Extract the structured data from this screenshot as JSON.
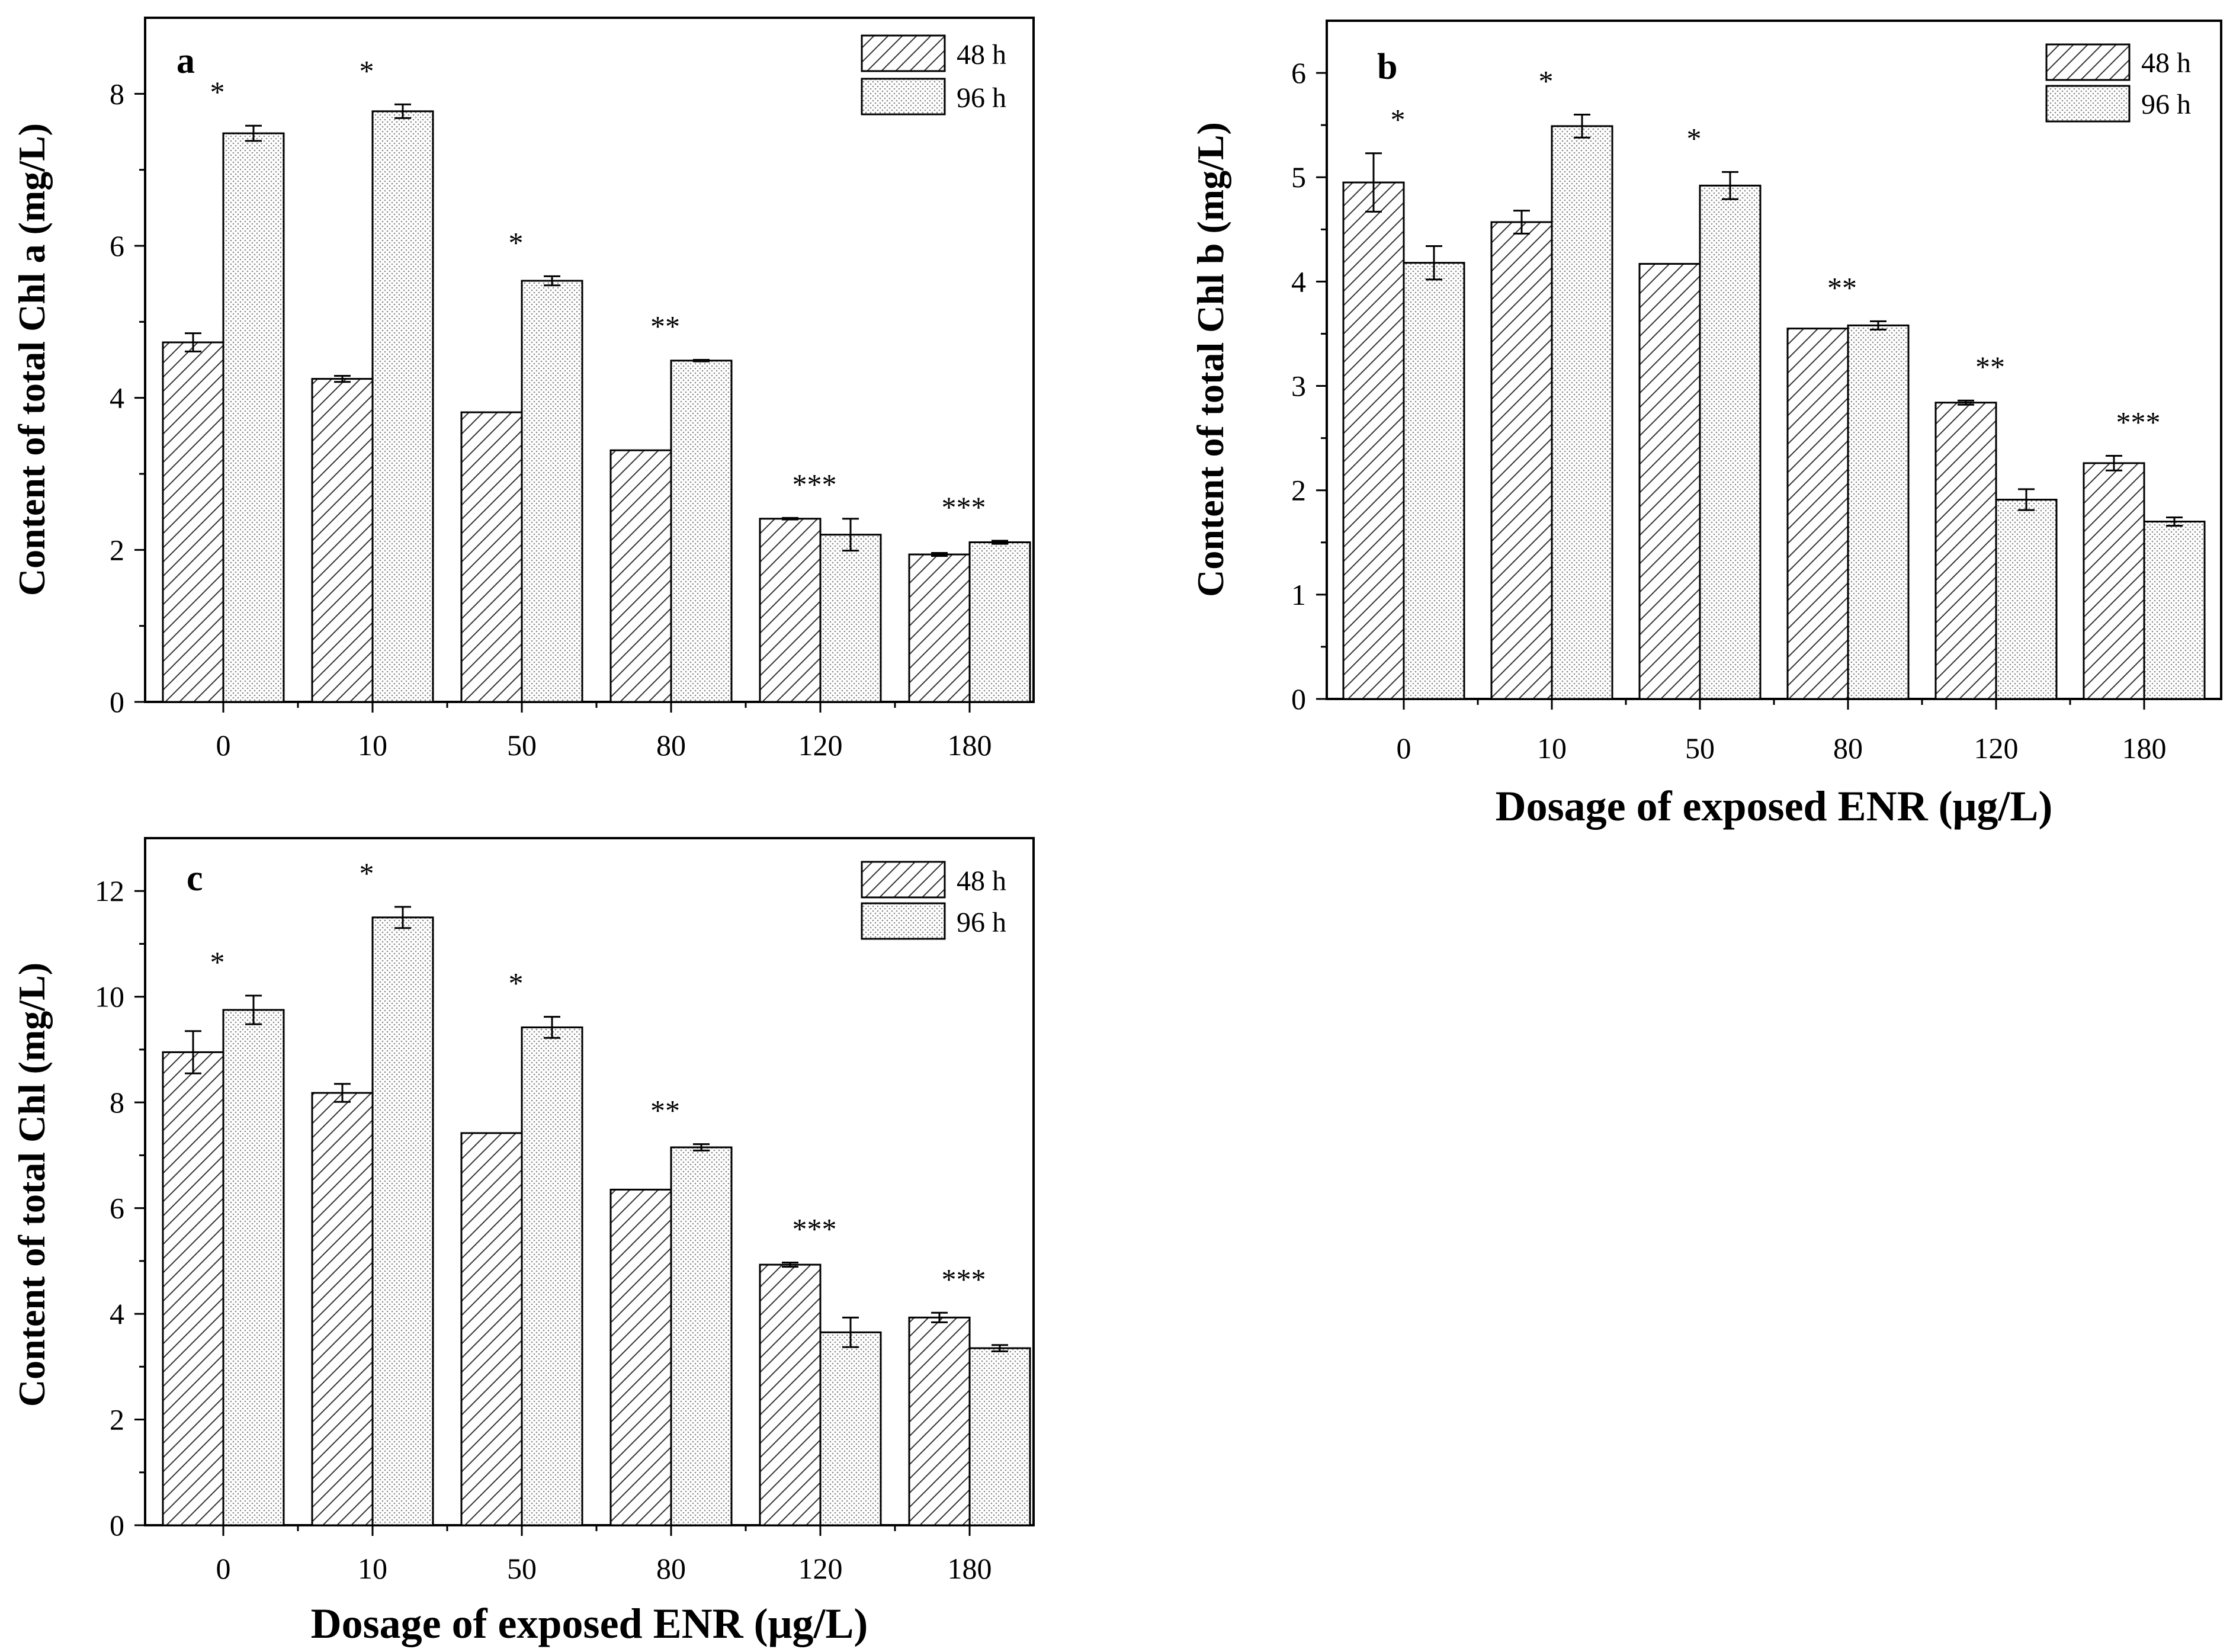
{
  "figure": {
    "legend_labels": [
      "48 h",
      "96 h"
    ],
    "categories": [
      "0",
      "10",
      "50",
      "80",
      "120",
      "180"
    ]
  },
  "chart_data": [
    {
      "panel": "a",
      "type": "bar",
      "title": "",
      "ylabel": "Content of total Chl a (mg/L)",
      "xlabel": "",
      "ylim": [
        0,
        9
      ],
      "yticks": [
        0,
        2,
        4,
        6,
        8
      ],
      "legend_position": "top-right",
      "categories": [
        "0",
        "10",
        "50",
        "80",
        "120",
        "180"
      ],
      "series": [
        {
          "name": "48 h",
          "pattern": "hatch",
          "values": [
            4.73,
            4.25,
            3.81,
            3.31,
            2.41,
            1.94
          ],
          "errors": [
            0.12,
            0.04,
            0.0,
            0.0,
            0.01,
            0.02
          ]
        },
        {
          "name": "96 h",
          "pattern": "dots",
          "values": [
            7.48,
            7.77,
            5.54,
            4.49,
            2.2,
            2.1
          ],
          "errors": [
            0.1,
            0.09,
            0.06,
            0.01,
            0.21,
            0.02
          ]
        }
      ],
      "annotations": [
        "*",
        "*",
        "*",
        "**",
        "***",
        "***"
      ]
    },
    {
      "panel": "b",
      "type": "bar",
      "title": "",
      "ylabel": "Content of total Chl b (mg/L)",
      "xlabel": "Dosage of exposed ENR (μg/L)",
      "ylim": [
        0,
        6.5
      ],
      "yticks": [
        0,
        1,
        2,
        3,
        4,
        5,
        6
      ],
      "legend_position": "top-right",
      "categories": [
        "0",
        "10",
        "50",
        "80",
        "120",
        "180"
      ],
      "series": [
        {
          "name": "48 h",
          "pattern": "hatch",
          "values": [
            4.95,
            4.57,
            4.17,
            3.55,
            2.84,
            2.26
          ],
          "errors": [
            0.28,
            0.11,
            0.0,
            0.0,
            0.02,
            0.07
          ]
        },
        {
          "name": "96 h",
          "pattern": "dots",
          "values": [
            4.18,
            5.49,
            4.92,
            3.58,
            1.91,
            1.7
          ],
          "errors": [
            0.16,
            0.11,
            0.13,
            0.04,
            0.1,
            0.04
          ]
        }
      ],
      "annotations": [
        "*",
        "*",
        "*",
        "**",
        "**",
        "***"
      ]
    },
    {
      "panel": "c",
      "type": "bar",
      "title": "",
      "ylabel": "Content of total Chl (mg/L)",
      "xlabel": "Dosage of exposed ENR (μg/L)",
      "ylim": [
        0,
        13
      ],
      "yticks": [
        0,
        2,
        4,
        6,
        8,
        10,
        12
      ],
      "legend_position": "top-right",
      "categories": [
        "0",
        "10",
        "50",
        "80",
        "120",
        "180"
      ],
      "series": [
        {
          "name": "48 h",
          "pattern": "hatch",
          "values": [
            8.95,
            8.18,
            7.42,
            6.35,
            4.93,
            3.93
          ],
          "errors": [
            0.4,
            0.17,
            0.0,
            0.0,
            0.04,
            0.09
          ]
        },
        {
          "name": "96 h",
          "pattern": "dots",
          "values": [
            9.75,
            11.5,
            9.42,
            7.15,
            3.65,
            3.35
          ],
          "errors": [
            0.27,
            0.2,
            0.2,
            0.06,
            0.28,
            0.06
          ]
        }
      ],
      "annotations": [
        "*",
        "*",
        "*",
        "**",
        "***",
        "***"
      ]
    }
  ]
}
